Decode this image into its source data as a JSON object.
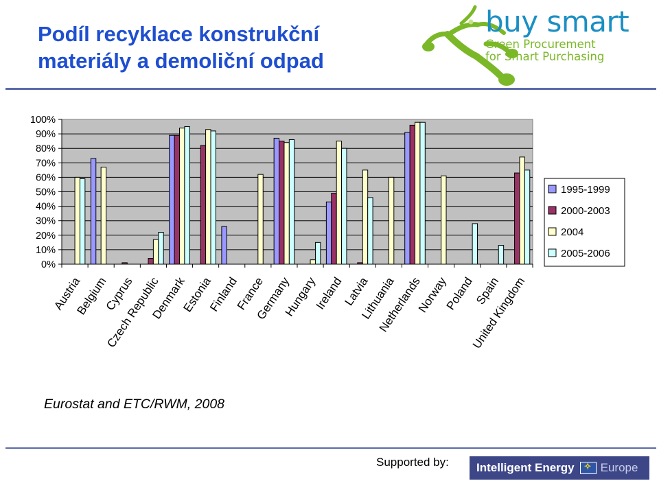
{
  "header": {
    "title_line1": "Podíl recyklace konstrukční",
    "title_line2": "materiály a demoliční odpad"
  },
  "logo": {
    "name": "buy smart",
    "tagline_line1": "Green Procurement",
    "tagline_line2": "for Smart Purchasing",
    "icon": "tree-branch-logo-icon"
  },
  "source_text": "Eurostat and ETC/RWM, 2008",
  "footer": {
    "supported_by": "Supported by:",
    "program_name": "Intelligent Energy",
    "program_region": "Europe",
    "flag_icon": "eu-flag-icon"
  },
  "colors": {
    "title": "#1f4fd0",
    "rule": "#5b6aa8",
    "plot_background": "#c0c0c0",
    "series": [
      "#9999ff",
      "#993366",
      "#ffffcc",
      "#ccffff"
    ]
  },
  "chart_data": {
    "type": "bar",
    "categories": [
      "Austria",
      "Belgium",
      "Cyprus",
      "Czech Republic",
      "Denmark",
      "Estonia",
      "Finland",
      "France",
      "Germany",
      "Hungary",
      "Ireland",
      "Latvia",
      "Lithuania",
      "Netherlands",
      "Norway",
      "Poland",
      "Spain",
      "United Kingdom"
    ],
    "series": [
      {
        "name": "1995-1999",
        "values": [
          null,
          73,
          null,
          null,
          89,
          null,
          26,
          null,
          87,
          null,
          43,
          null,
          null,
          91,
          null,
          null,
          null,
          null
        ]
      },
      {
        "name": "2000-2003",
        "values": [
          null,
          null,
          1,
          4,
          89,
          82,
          null,
          null,
          85,
          null,
          49,
          1,
          null,
          96,
          null,
          null,
          null,
          63
        ]
      },
      {
        "name": "2004",
        "values": [
          60,
          67,
          null,
          17,
          94,
          93,
          null,
          62,
          84,
          3,
          85,
          65,
          60,
          98,
          61,
          null,
          null,
          74
        ]
      },
      {
        "name": "2005-2006",
        "values": [
          59,
          null,
          null,
          22,
          95,
          92,
          null,
          null,
          86,
          15,
          80,
          46,
          null,
          98,
          null,
          28,
          13,
          65
        ]
      }
    ],
    "ylim": [
      0,
      100
    ],
    "yticks": [
      "0%",
      "10%",
      "20%",
      "30%",
      "40%",
      "50%",
      "60%",
      "70%",
      "80%",
      "90%",
      "100%"
    ],
    "grid": true,
    "legend_position": "right"
  }
}
